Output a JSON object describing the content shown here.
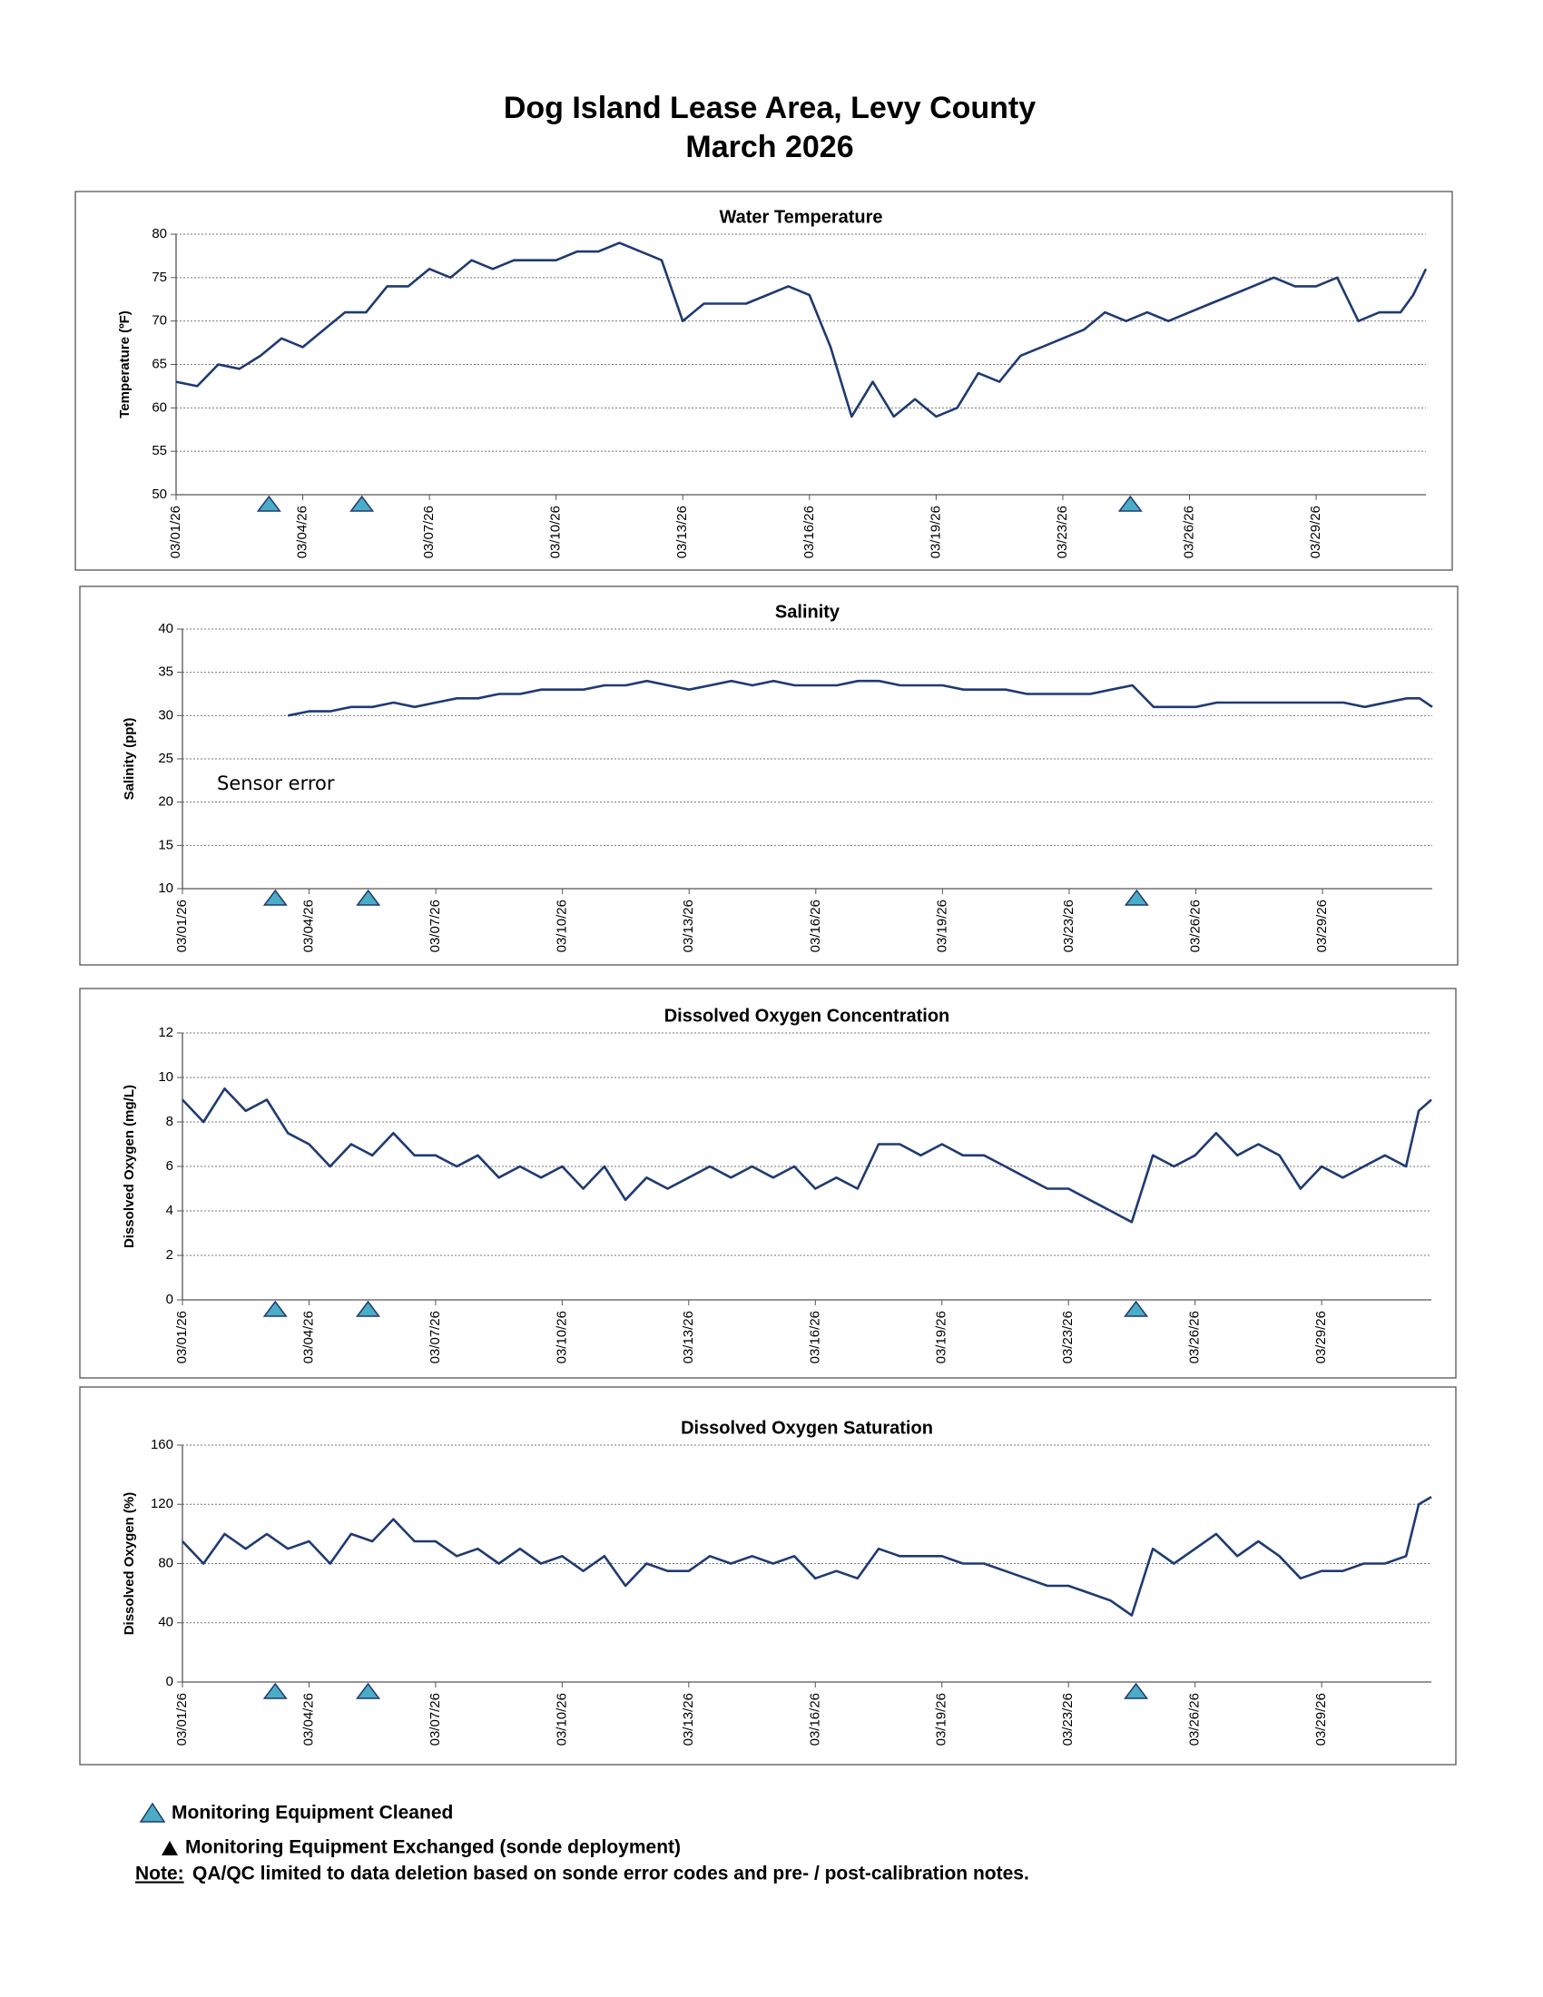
{
  "title": "Dog Island Lease Area, Levy County",
  "subtitle": "March 2026",
  "chart_data": [
    {
      "type": "line",
      "title": "Water Temperature",
      "ylabel": "Temperature (ºF)",
      "color": "#1f3a73",
      "marker_color": "#4bacc6",
      "grid": true,
      "xlim": [
        1,
        30.6
      ],
      "ylim": [
        50,
        80
      ],
      "yticks": [
        50,
        55,
        60,
        65,
        70,
        75,
        80
      ],
      "xticks": [
        {
          "value": 1,
          "label": "03/01/26"
        },
        {
          "value": 4,
          "label": "03/04/26"
        },
        {
          "value": 7,
          "label": "03/07/26"
        },
        {
          "value": 10,
          "label": "03/10/26"
        },
        {
          "value": 13,
          "label": "03/13/26"
        },
        {
          "value": 16,
          "label": "03/16/26"
        },
        {
          "value": 19,
          "label": "03/19/26"
        },
        {
          "value": 22,
          "label": "03/23/26"
        },
        {
          "value": 25,
          "label": "03/26/26"
        },
        {
          "value": 28,
          "label": "03/29/26"
        }
      ],
      "cleaned_x": [
        3.2,
        5.4,
        23.6
      ],
      "x": [
        1,
        1.5,
        2,
        2.5,
        3,
        3.5,
        4,
        4.5,
        5,
        5.5,
        6,
        6.5,
        7,
        7.5,
        8,
        8.5,
        9,
        9.5,
        10,
        10.5,
        11,
        11.5,
        12,
        12.5,
        13,
        13.5,
        14,
        14.5,
        15,
        15.5,
        16,
        16.5,
        17,
        17.5,
        18,
        18.5,
        19,
        19.5,
        20,
        20.5,
        21,
        21.5,
        22,
        22.5,
        23,
        23.5,
        24,
        24.5,
        25,
        25.5,
        26,
        26.5,
        27,
        27.5,
        28,
        28.5,
        29,
        29.5,
        30,
        30.3,
        30.6
      ],
      "values": [
        63,
        62.5,
        65,
        64.5,
        66,
        68,
        67,
        69,
        71,
        71,
        74,
        74,
        76,
        75,
        77,
        76,
        77,
        77,
        77,
        78,
        78,
        79,
        78,
        77,
        70,
        72,
        72,
        72,
        73,
        74,
        73,
        67,
        59,
        63,
        59,
        61,
        59,
        60,
        64,
        63,
        66,
        67,
        68,
        69,
        71,
        70,
        71,
        70,
        71,
        72,
        73,
        74,
        75,
        74,
        74,
        75,
        70,
        71,
        71,
        73,
        76
      ]
    },
    {
      "type": "line",
      "title": "Salinity",
      "ylabel": "Salinity (ppt)",
      "annotation": "Sensor error",
      "color": "#1f3a73",
      "marker_color": "#4bacc6",
      "grid": true,
      "xlim": [
        1,
        30.6
      ],
      "ylim": [
        10,
        40
      ],
      "yticks": [
        10,
        15,
        20,
        25,
        30,
        35,
        40
      ],
      "xticks": [
        {
          "value": 1,
          "label": "03/01/26"
        },
        {
          "value": 4,
          "label": "03/04/26"
        },
        {
          "value": 7,
          "label": "03/07/26"
        },
        {
          "value": 10,
          "label": "03/10/26"
        },
        {
          "value": 13,
          "label": "03/13/26"
        },
        {
          "value": 16,
          "label": "03/16/26"
        },
        {
          "value": 19,
          "label": "03/19/26"
        },
        {
          "value": 22,
          "label": "03/23/26"
        },
        {
          "value": 25,
          "label": "03/26/26"
        },
        {
          "value": 28,
          "label": "03/29/26"
        }
      ],
      "cleaned_x": [
        3.2,
        5.4,
        23.6
      ],
      "x": [
        1,
        1.5,
        2,
        2.5,
        3,
        3.5,
        4,
        4.5,
        5,
        5.5,
        6,
        6.5,
        7,
        7.5,
        8,
        8.5,
        9,
        9.5,
        10,
        10.5,
        11,
        11.5,
        12,
        12.5,
        13,
        13.5,
        14,
        14.5,
        15,
        15.5,
        16,
        16.5,
        17,
        17.5,
        18,
        18.5,
        19,
        19.5,
        20,
        20.5,
        21,
        21.5,
        22,
        22.5,
        23,
        23.5,
        24,
        24.5,
        25,
        25.5,
        26,
        26.5,
        27,
        27.5,
        28,
        28.5,
        29,
        29.5,
        30,
        30.3,
        30.6
      ],
      "values": [
        null,
        null,
        null,
        null,
        null,
        30,
        30.5,
        30.5,
        31,
        31,
        31.5,
        31,
        31.5,
        32,
        32,
        32.5,
        32.5,
        33,
        33,
        33,
        33.5,
        33.5,
        34,
        33.5,
        33,
        33.5,
        34,
        33.5,
        34,
        33.5,
        33.5,
        33.5,
        34,
        34,
        33.5,
        33.5,
        33.5,
        33,
        33,
        33,
        32.5,
        32.5,
        32.5,
        32.5,
        33,
        33.5,
        31,
        31,
        31,
        31.5,
        31.5,
        31.5,
        31.5,
        31.5,
        31.5,
        31.5,
        31,
        31.5,
        32,
        32,
        31
      ]
    },
    {
      "type": "line",
      "title": "Dissolved Oxygen Concentration",
      "ylabel": "Dissolved Oxygen (mg/L)",
      "color": "#1f3a73",
      "marker_color": "#4bacc6",
      "grid": true,
      "xlim": [
        1,
        30.6
      ],
      "ylim": [
        0,
        12
      ],
      "yticks": [
        0,
        2,
        4,
        6,
        8,
        10,
        12
      ],
      "xticks": [
        {
          "value": 1,
          "label": "03/01/26"
        },
        {
          "value": 4,
          "label": "03/04/26"
        },
        {
          "value": 7,
          "label": "03/07/26"
        },
        {
          "value": 10,
          "label": "03/10/26"
        },
        {
          "value": 13,
          "label": "03/13/26"
        },
        {
          "value": 16,
          "label": "03/16/26"
        },
        {
          "value": 19,
          "label": "03/19/26"
        },
        {
          "value": 22,
          "label": "03/23/26"
        },
        {
          "value": 25,
          "label": "03/26/26"
        },
        {
          "value": 28,
          "label": "03/29/26"
        }
      ],
      "cleaned_x": [
        3.2,
        5.4,
        23.6
      ],
      "x": [
        1,
        1.5,
        2,
        2.5,
        3,
        3.5,
        4,
        4.5,
        5,
        5.5,
        6,
        6.5,
        7,
        7.5,
        8,
        8.5,
        9,
        9.5,
        10,
        10.5,
        11,
        11.5,
        12,
        12.5,
        13,
        13.5,
        14,
        14.5,
        15,
        15.5,
        16,
        16.5,
        17,
        17.5,
        18,
        18.5,
        19,
        19.5,
        20,
        20.5,
        21,
        21.5,
        22,
        22.5,
        23,
        23.5,
        24,
        24.5,
        25,
        25.5,
        26,
        26.5,
        27,
        27.5,
        28,
        28.5,
        29,
        29.5,
        30,
        30.3,
        30.6
      ],
      "values": [
        9,
        8,
        9.5,
        8.5,
        9,
        7.5,
        7,
        6,
        7,
        6.5,
        7.5,
        6.5,
        6.5,
        6,
        6.5,
        5.5,
        6,
        5.5,
        6,
        5,
        6,
        4.5,
        5.5,
        5,
        5.5,
        6,
        5.5,
        6,
        5.5,
        6,
        5,
        5.5,
        5,
        7,
        7,
        6.5,
        7,
        6.5,
        6.5,
        6,
        5.5,
        5,
        5,
        4.5,
        4,
        3.5,
        6.5,
        6,
        6.5,
        7.5,
        6.5,
        7,
        6.5,
        5,
        6,
        5.5,
        6,
        6.5,
        6,
        8.5,
        9
      ]
    },
    {
      "type": "line",
      "title": "Dissolved Oxygen Saturation",
      "ylabel": "Dissolved Oxygen (%)",
      "color": "#1f3a73",
      "marker_color": "#4bacc6",
      "grid": true,
      "xlim": [
        1,
        30.6
      ],
      "ylim": [
        0,
        160
      ],
      "yticks": [
        0,
        40,
        80,
        120,
        160
      ],
      "xticks": [
        {
          "value": 1,
          "label": "03/01/26"
        },
        {
          "value": 4,
          "label": "03/04/26"
        },
        {
          "value": 7,
          "label": "03/07/26"
        },
        {
          "value": 10,
          "label": "03/10/26"
        },
        {
          "value": 13,
          "label": "03/13/26"
        },
        {
          "value": 16,
          "label": "03/16/26"
        },
        {
          "value": 19,
          "label": "03/19/26"
        },
        {
          "value": 22,
          "label": "03/23/26"
        },
        {
          "value": 25,
          "label": "03/26/26"
        },
        {
          "value": 28,
          "label": "03/29/26"
        }
      ],
      "cleaned_x": [
        3.2,
        5.4,
        23.6
      ],
      "x": [
        1,
        1.5,
        2,
        2.5,
        3,
        3.5,
        4,
        4.5,
        5,
        5.5,
        6,
        6.5,
        7,
        7.5,
        8,
        8.5,
        9,
        9.5,
        10,
        10.5,
        11,
        11.5,
        12,
        12.5,
        13,
        13.5,
        14,
        14.5,
        15,
        15.5,
        16,
        16.5,
        17,
        17.5,
        18,
        18.5,
        19,
        19.5,
        20,
        20.5,
        21,
        21.5,
        22,
        22.5,
        23,
        23.5,
        24,
        24.5,
        25,
        25.5,
        26,
        26.5,
        27,
        27.5,
        28,
        28.5,
        29,
        29.5,
        30,
        30.3,
        30.6
      ],
      "values": [
        95,
        80,
        100,
        90,
        100,
        90,
        95,
        80,
        100,
        95,
        110,
        95,
        95,
        85,
        90,
        80,
        90,
        80,
        85,
        75,
        85,
        65,
        80,
        75,
        75,
        85,
        80,
        85,
        80,
        85,
        70,
        75,
        70,
        90,
        85,
        85,
        85,
        80,
        80,
        75,
        70,
        65,
        65,
        60,
        55,
        45,
        90,
        80,
        90,
        100,
        85,
        95,
        85,
        70,
        75,
        75,
        80,
        80,
        85,
        120,
        125
      ]
    }
  ],
  "legend": {
    "cleaned": "Monitoring Equipment Cleaned",
    "exchanged": "Monitoring Equipment Exchanged (sonde deployment)"
  },
  "note": {
    "label": "Note:",
    "text": "QA/QC limited to data deletion based on sonde error codes and pre- / post-calibration notes."
  }
}
